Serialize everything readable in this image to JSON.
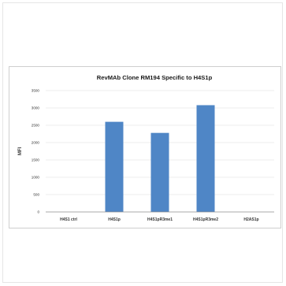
{
  "chart_data": {
    "type": "bar",
    "title": "RevMAb Clone RM194 Specific to H4S1p",
    "xlabel": "",
    "ylabel": "MFI",
    "categories": [
      "H4S1 ctrl",
      "H4S1p",
      "H4S1pR3me1",
      "H4S1pR3me2",
      "H2AS1p"
    ],
    "values": [
      0,
      2600,
      2280,
      3080,
      0
    ],
    "ylim": [
      0,
      3500
    ],
    "yticks": [
      "0",
      "500",
      "1000",
      "1500",
      "2000",
      "2500",
      "3000",
      "3500"
    ],
    "bar_color": "#4f86c6",
    "grid": true,
    "legend": "none"
  }
}
